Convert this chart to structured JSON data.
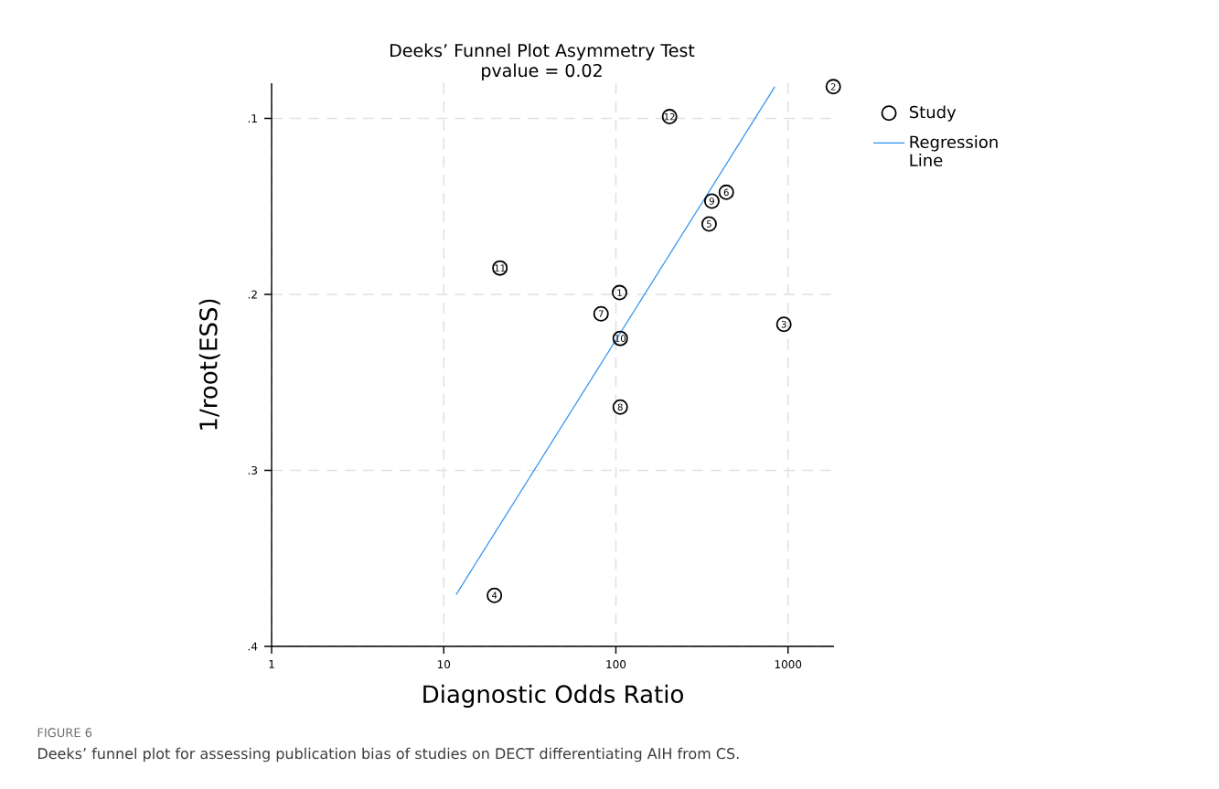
{
  "chart_data": {
    "type": "scatter",
    "title": "Deeks’ Funnel Plot Asymmetry Test",
    "subtitle": "pvalue =  0.02",
    "xlabel": "Diagnostic Odds Ratio",
    "ylabel": "1/root(ESS)",
    "log": "x",
    "xlim": [
      1,
      1850
    ],
    "ylim": [
      0.4,
      0.08
    ],
    "xticks": [
      1,
      10,
      100,
      1000
    ],
    "yticks": [
      {
        "value": 0.1,
        "label": ".1"
      },
      {
        "value": 0.2,
        "label": ".2"
      },
      {
        "value": 0.3,
        "label": ".3"
      },
      {
        "value": 0.4,
        "label": ".4"
      }
    ],
    "grid": true,
    "legend": "top right",
    "line_style": "solid",
    "series": [
      {
        "name": "Study",
        "marker": "circle",
        "color": "#000000",
        "x": [
          105,
          1832,
          946,
          19.7,
          348,
          438,
          82,
          106,
          361,
          106,
          21.2,
          205
        ],
        "values": [
          0.199,
          0.082,
          0.217,
          0.371,
          0.16,
          0.142,
          0.211,
          0.264,
          0.147,
          0.225,
          0.185,
          0.099
        ]
      },
      {
        "name": "Regression Line",
        "type": "line",
        "marker": "none",
        "color": "#2f8ff0",
        "x": [
          11.8,
          838
        ],
        "values": [
          0.3706,
          0.082
        ]
      }
    ],
    "annotations": [
      {
        "text": "1",
        "x": 105,
        "y": 0.199
      },
      {
        "text": "2",
        "x": 1832,
        "y": 0.082
      },
      {
        "text": "3",
        "x": 946,
        "y": 0.217
      },
      {
        "text": "4",
        "x": 19.7,
        "y": 0.371
      },
      {
        "text": "5",
        "x": 348,
        "y": 0.16
      },
      {
        "text": "6",
        "x": 438,
        "y": 0.142
      },
      {
        "text": "7",
        "x": 82,
        "y": 0.211
      },
      {
        "text": "8",
        "x": 106,
        "y": 0.264
      },
      {
        "text": "9",
        "x": 361,
        "y": 0.147
      },
      {
        "text": "10",
        "x": 106,
        "y": 0.225
      },
      {
        "text": "11",
        "x": 21.2,
        "y": 0.185
      },
      {
        "text": "12",
        "x": 205,
        "y": 0.099
      },
      "FIGURE 6",
      "Deeks’ funnel plot for assessing publication bias of studies on DECT differentiating AIH from CS."
    ]
  }
}
